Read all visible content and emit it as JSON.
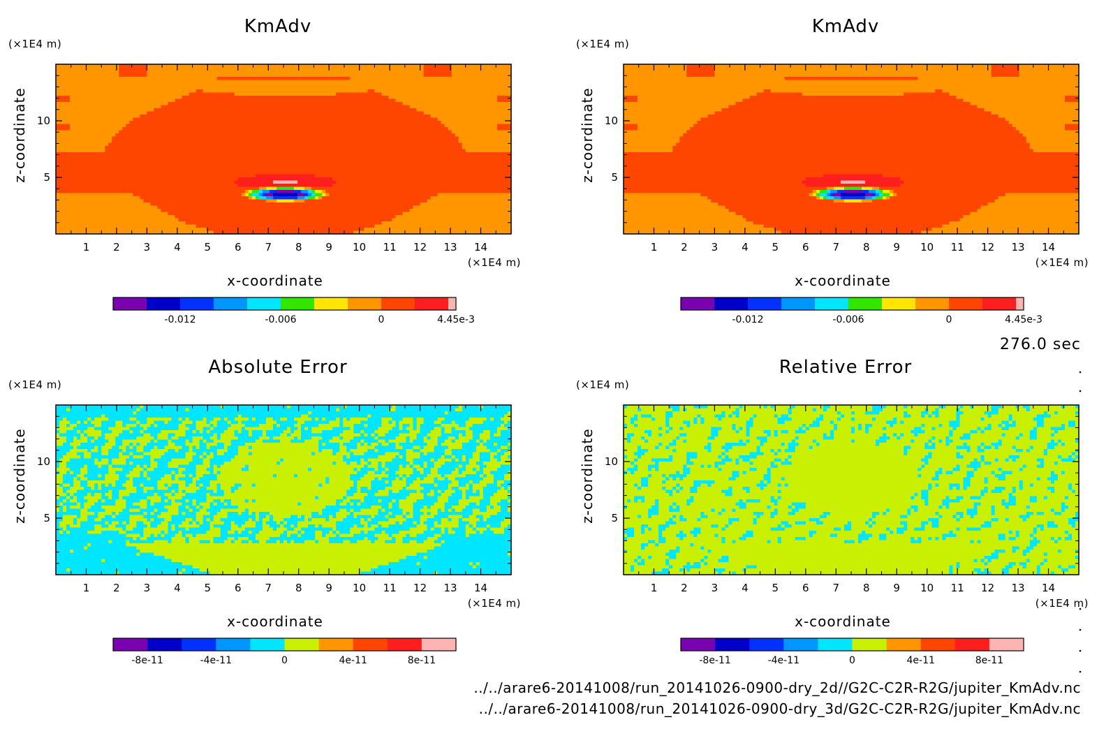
{
  "time_label": "276.0 sec",
  "file_paths": [
    "../../arare6-20141008/run_20141026-0900-dry_2d//G2C-C2R-R2G/jupiter_KmAdv.nc",
    "../../arare6-20141008/run_20141026-0900-dry_3d/G2C-C2R-R2G/jupiter_KmAdv.nc"
  ],
  "chart_data": [
    {
      "type": "heatmap",
      "title": "KmAdv",
      "xlabel": "x-coordinate",
      "ylabel": "z-coordinate",
      "x_unit": "(×1E4 m)",
      "y_unit": "(×1E4 m)",
      "x_ticks": [
        "1",
        "2",
        "3",
        "4",
        "5",
        "6",
        "7",
        "8",
        "9",
        "10",
        "11",
        "12",
        "13",
        "14"
      ],
      "y_ticks": [
        "5",
        "10"
      ],
      "xlim": [
        0,
        15
      ],
      "ylim": [
        0,
        15
      ],
      "field": "kmadv",
      "colorbar": {
        "colors": [
          "#7a00b0",
          "#0000c8",
          "#0032ff",
          "#0096ff",
          "#00e6ff",
          "#32e600",
          "#ffe600",
          "#ff9600",
          "#ff4600",
          "#ff1e1e",
          "#ffb4b4"
        ],
        "tick_labels": [
          "-0.012",
          "-0.006",
          "0",
          "4.45e-3"
        ]
      }
    },
    {
      "type": "heatmap",
      "title": "KmAdv",
      "xlabel": "x-coordinate",
      "ylabel": "z-coordinate",
      "x_unit": "(×1E4 m)",
      "y_unit": "(×1E4 m)",
      "x_ticks": [
        "1",
        "2",
        "3",
        "4",
        "5",
        "6",
        "7",
        "8",
        "9",
        "10",
        "11",
        "12",
        "13",
        "14"
      ],
      "y_ticks": [
        "5",
        "10"
      ],
      "xlim": [
        0,
        15
      ],
      "ylim": [
        0,
        15
      ],
      "field": "kmadv",
      "colorbar": {
        "colors": [
          "#7a00b0",
          "#0000c8",
          "#0032ff",
          "#0096ff",
          "#00e6ff",
          "#32e600",
          "#ffe600",
          "#ff9600",
          "#ff4600",
          "#ff1e1e",
          "#ffb4b4"
        ],
        "tick_labels": [
          "-0.012",
          "-0.006",
          "0",
          "4.45e-3"
        ]
      }
    },
    {
      "type": "heatmap",
      "title": "Absolute Error",
      "xlabel": "x-coordinate",
      "ylabel": "z-coordinate",
      "x_unit": "(×1E4 m)",
      "y_unit": "(×1E4 m)",
      "x_ticks": [
        "1",
        "2",
        "3",
        "4",
        "5",
        "6",
        "7",
        "8",
        "9",
        "10",
        "11",
        "12",
        "13",
        "14"
      ],
      "y_ticks": [
        "5",
        "10"
      ],
      "xlim": [
        0,
        15
      ],
      "ylim": [
        0,
        15
      ],
      "field": "noise_cyan",
      "colorbar": {
        "colors": [
          "#7a00b0",
          "#0000c8",
          "#0032ff",
          "#0096ff",
          "#00e6ff",
          "#c8f000",
          "#ff9600",
          "#ff4600",
          "#ff1e1e",
          "#ffb4b4"
        ],
        "tick_labels": [
          "-8e-11",
          "-4e-11",
          "0",
          "4e-11",
          "8e-11"
        ]
      }
    },
    {
      "type": "heatmap",
      "title": "Relative Error",
      "xlabel": "x-coordinate",
      "ylabel": "z-coordinate",
      "x_unit": "(×1E4 m)",
      "y_unit": "(×1E4 m)",
      "x_ticks": [
        "1",
        "2",
        "3",
        "4",
        "5",
        "6",
        "7",
        "8",
        "9",
        "10",
        "11",
        "12",
        "13",
        "14"
      ],
      "y_ticks": [
        "5",
        "10"
      ],
      "xlim": [
        0,
        15
      ],
      "ylim": [
        0,
        15
      ],
      "field": "noise_green",
      "colorbar": {
        "colors": [
          "#7a00b0",
          "#0000c8",
          "#0032ff",
          "#0096ff",
          "#00e6ff",
          "#c8f000",
          "#ff9600",
          "#ff4600",
          "#ff1e1e",
          "#ffb4b4"
        ],
        "tick_labels": [
          "-8e-11",
          "-4e-11",
          "0",
          "4e-11",
          "8e-11"
        ]
      }
    }
  ]
}
